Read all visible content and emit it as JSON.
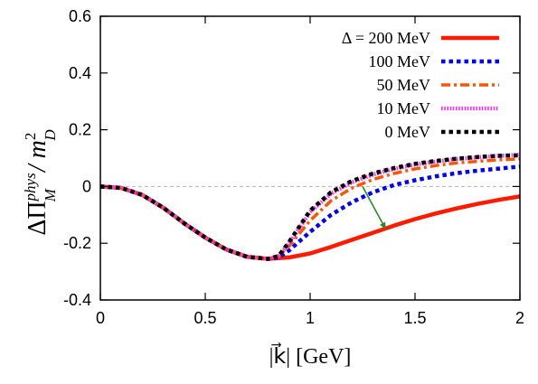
{
  "chart_data": {
    "type": "line",
    "xlabel": "|k⃗|  [GeV]",
    "ylabel_parts": {
      "prefix": "ΔΠ",
      "sup": "phys",
      "sub": "M",
      "middle": " / m",
      "sub2": "D",
      "sup2": "2"
    },
    "xlim": [
      0,
      2
    ],
    "ylim": [
      -0.4,
      0.6
    ],
    "xticks": [
      0,
      0.5,
      1,
      1.5,
      2
    ],
    "xtick_labels": [
      "0",
      "0.5",
      "1",
      "1.5",
      "2"
    ],
    "yticks": [
      -0.4,
      -0.2,
      0,
      0.2,
      0.4,
      0.6
    ],
    "ytick_labels": [
      "-0.4",
      "-0.2",
      "0",
      "0.2",
      "0.4",
      "0.6"
    ],
    "zero_line": true,
    "grid": false,
    "legend_position": "top-right",
    "series": [
      {
        "name": "Δ = 200 MeV",
        "color": "#ff1a00",
        "style": "solid",
        "x": [
          0,
          0.1,
          0.2,
          0.3,
          0.4,
          0.5,
          0.6,
          0.7,
          0.8,
          0.9,
          1.0,
          1.1,
          1.2,
          1.3,
          1.4,
          1.5,
          1.6,
          1.7,
          1.8,
          1.9,
          2.0
        ],
        "y": [
          0,
          -0.005,
          -0.03,
          -0.075,
          -0.13,
          -0.18,
          -0.222,
          -0.248,
          -0.255,
          -0.25,
          -0.236,
          -0.213,
          -0.188,
          -0.163,
          -0.138,
          -0.115,
          -0.095,
          -0.077,
          -0.061,
          -0.047,
          -0.035
        ]
      },
      {
        "name": "100 MeV",
        "color": "#0000ff",
        "style": "dotted",
        "x": [
          0,
          0.1,
          0.2,
          0.3,
          0.4,
          0.5,
          0.6,
          0.7,
          0.8,
          0.85,
          0.9,
          1.0,
          1.1,
          1.2,
          1.3,
          1.4,
          1.5,
          1.6,
          1.7,
          1.8,
          1.9,
          2.0
        ],
        "y": [
          0,
          -0.005,
          -0.03,
          -0.075,
          -0.13,
          -0.18,
          -0.222,
          -0.248,
          -0.255,
          -0.25,
          -0.225,
          -0.16,
          -0.1,
          -0.055,
          -0.02,
          0.005,
          0.022,
          0.036,
          0.047,
          0.056,
          0.063,
          0.07
        ]
      },
      {
        "name": "50 MeV",
        "color": "#ff5500",
        "style": "dash-dot",
        "x": [
          0,
          0.1,
          0.2,
          0.3,
          0.4,
          0.5,
          0.6,
          0.7,
          0.8,
          0.85,
          0.9,
          1.0,
          1.1,
          1.2,
          1.3,
          1.4,
          1.5,
          1.6,
          1.7,
          1.8,
          1.9,
          2.0
        ],
        "y": [
          0,
          -0.005,
          -0.03,
          -0.075,
          -0.13,
          -0.18,
          -0.222,
          -0.248,
          -0.255,
          -0.245,
          -0.21,
          -0.12,
          -0.05,
          -0.005,
          0.025,
          0.046,
          0.062,
          0.074,
          0.083,
          0.089,
          0.094,
          0.097
        ]
      },
      {
        "name": "10 MeV",
        "color": "#ff33ff",
        "style": "fine-dotted",
        "x": [
          0,
          0.1,
          0.2,
          0.3,
          0.4,
          0.5,
          0.6,
          0.7,
          0.8,
          0.85,
          0.9,
          1.0,
          1.1,
          1.2,
          1.3,
          1.4,
          1.5,
          1.6,
          1.7,
          1.8,
          1.9,
          2.0
        ],
        "y": [
          0,
          -0.005,
          -0.03,
          -0.075,
          -0.13,
          -0.18,
          -0.222,
          -0.248,
          -0.255,
          -0.245,
          -0.2,
          -0.09,
          -0.025,
          0.015,
          0.042,
          0.062,
          0.077,
          0.088,
          0.097,
          0.103,
          0.108,
          0.112
        ]
      },
      {
        "name": "0 MeV",
        "color": "#000000",
        "style": "dotted",
        "x": [
          0,
          0.1,
          0.2,
          0.3,
          0.4,
          0.5,
          0.6,
          0.7,
          0.8,
          0.85,
          0.9,
          1.0,
          1.1,
          1.2,
          1.3,
          1.4,
          1.5,
          1.6,
          1.7,
          1.8,
          1.9,
          2.0
        ],
        "y": [
          0,
          -0.005,
          -0.03,
          -0.075,
          -0.13,
          -0.18,
          -0.222,
          -0.248,
          -0.255,
          -0.245,
          -0.195,
          -0.085,
          -0.02,
          0.02,
          0.046,
          0.065,
          0.08,
          0.09,
          0.098,
          0.104,
          0.108,
          0.11
        ]
      }
    ],
    "annotation_arrow": {
      "color": "#2a8a2a",
      "from": [
        1.25,
        0.0
      ],
      "to": [
        1.36,
        -0.15
      ]
    }
  }
}
